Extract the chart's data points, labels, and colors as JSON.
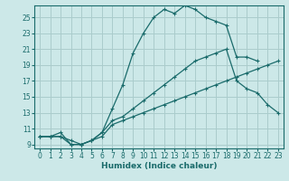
{
  "xlabel": "Humidex (Indice chaleur)",
  "background_color": "#cce8e8",
  "grid_color": "#aacccc",
  "line_color": "#1a6b6b",
  "xlim": [
    -0.5,
    23.5
  ],
  "ylim": [
    8.5,
    26.5
  ],
  "xticks": [
    0,
    1,
    2,
    3,
    4,
    5,
    6,
    7,
    8,
    9,
    10,
    11,
    12,
    13,
    14,
    15,
    16,
    17,
    18,
    19,
    20,
    21,
    22,
    23
  ],
  "yticks": [
    9,
    11,
    13,
    15,
    17,
    19,
    21,
    23,
    25
  ],
  "line1_x": [
    0,
    1,
    2,
    3,
    4,
    5,
    6,
    7,
    8,
    9,
    10,
    11,
    12,
    13,
    14,
    15,
    16,
    17,
    18,
    19,
    20,
    21,
    22,
    23
  ],
  "line1_y": [
    10.0,
    10.0,
    10.0,
    9.0,
    9.0,
    9.5,
    10.0,
    11.5,
    12.0,
    12.5,
    13.0,
    13.5,
    14.0,
    14.5,
    15.0,
    15.5,
    16.0,
    16.5,
    17.0,
    17.5,
    18.0,
    18.5,
    19.0,
    19.5
  ],
  "line2_x": [
    0,
    1,
    2,
    3,
    4,
    5,
    6,
    7,
    8,
    9,
    10,
    11,
    12,
    13,
    14,
    15,
    16,
    17,
    18,
    19,
    20,
    21
  ],
  "line2_y": [
    10.0,
    10.0,
    10.5,
    9.0,
    9.0,
    9.5,
    10.5,
    13.5,
    16.5,
    20.5,
    23.0,
    25.0,
    26.0,
    25.5,
    26.5,
    26.0,
    25.0,
    24.5,
    24.0,
    20.0,
    20.0,
    19.5
  ],
  "line3_x": [
    0,
    1,
    2,
    3,
    4,
    5,
    6,
    7,
    8,
    9,
    10,
    11,
    12,
    13,
    14,
    15,
    16,
    17,
    18,
    19,
    20,
    21,
    22,
    23
  ],
  "line3_y": [
    10.0,
    10.0,
    10.0,
    9.5,
    9.0,
    9.5,
    10.5,
    12.0,
    12.5,
    13.5,
    14.5,
    15.5,
    16.5,
    17.5,
    18.5,
    19.5,
    20.0,
    20.5,
    21.0,
    17.0,
    16.0,
    15.5,
    14.0,
    13.0
  ]
}
